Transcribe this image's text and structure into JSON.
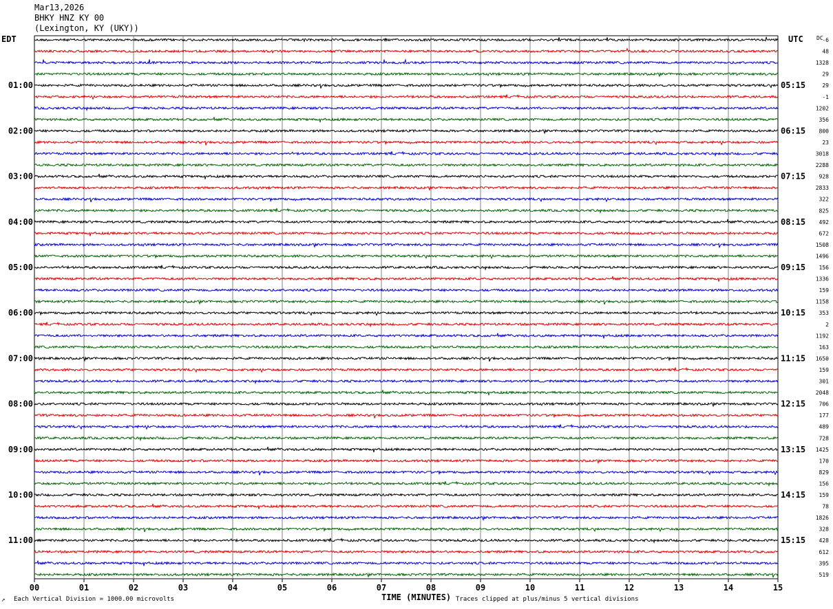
{
  "header": {
    "date": "Mar13,2026",
    "station": "BHKY HNZ KY 00",
    "location": "(Lexington, KY (UKY))"
  },
  "left_timezone": "EDT",
  "right_timezone": "UTC",
  "dc_label": "DC",
  "footer": {
    "scale_note": "Each Vertical Division = 1000.00 microvolts",
    "clip_note": "Traces clipped at plus/minus 5 vertical divisions",
    "corner_mark": "↗"
  },
  "colors": {
    "trace_cycle": [
      "#000000",
      "#e00000",
      "#0000d0",
      "#006400"
    ],
    "grid": "#808080",
    "background": "#ffffff"
  },
  "chart_data": {
    "type": "line",
    "title": "BHKY HNZ KY 00",
    "xlabel": "TIME (MINUTES)",
    "ylabel": "",
    "x_ticks": [
      "00",
      "01",
      "02",
      "03",
      "04",
      "05",
      "06",
      "07",
      "08",
      "09",
      "10",
      "11",
      "12",
      "13",
      "14",
      "15"
    ],
    "xlim": [
      0,
      15
    ],
    "left_hour_labels": [
      "01:00",
      "02:00",
      "03:00",
      "04:00",
      "05:00",
      "06:00",
      "07:00",
      "08:00",
      "09:00",
      "10:00",
      "11:00"
    ],
    "right_hour_labels": [
      "05:15",
      "06:15",
      "07:15",
      "08:15",
      "09:15",
      "10:15",
      "11:15",
      "12:15",
      "13:15",
      "14:15",
      "15:15"
    ],
    "dc_offsets": [
      "-6",
      "48",
      "1328",
      "29",
      "29",
      "-1",
      "1202",
      "356",
      "800",
      "23",
      "3018",
      "2288",
      "928",
      "2833",
      "322",
      "825",
      "492",
      "672",
      "1508",
      "1496",
      "156",
      "1336",
      "159",
      "1158",
      "353",
      "2",
      "1192",
      "163",
      "1650",
      "159",
      "301",
      "2048",
      "706",
      "177",
      "489",
      "728",
      "1425",
      "170",
      "829",
      "156",
      "159",
      "78",
      "1826",
      "328",
      "428",
      "612",
      "395",
      "519"
    ],
    "traces_per_hour": 4,
    "trace_count": 48,
    "grid": true
  }
}
